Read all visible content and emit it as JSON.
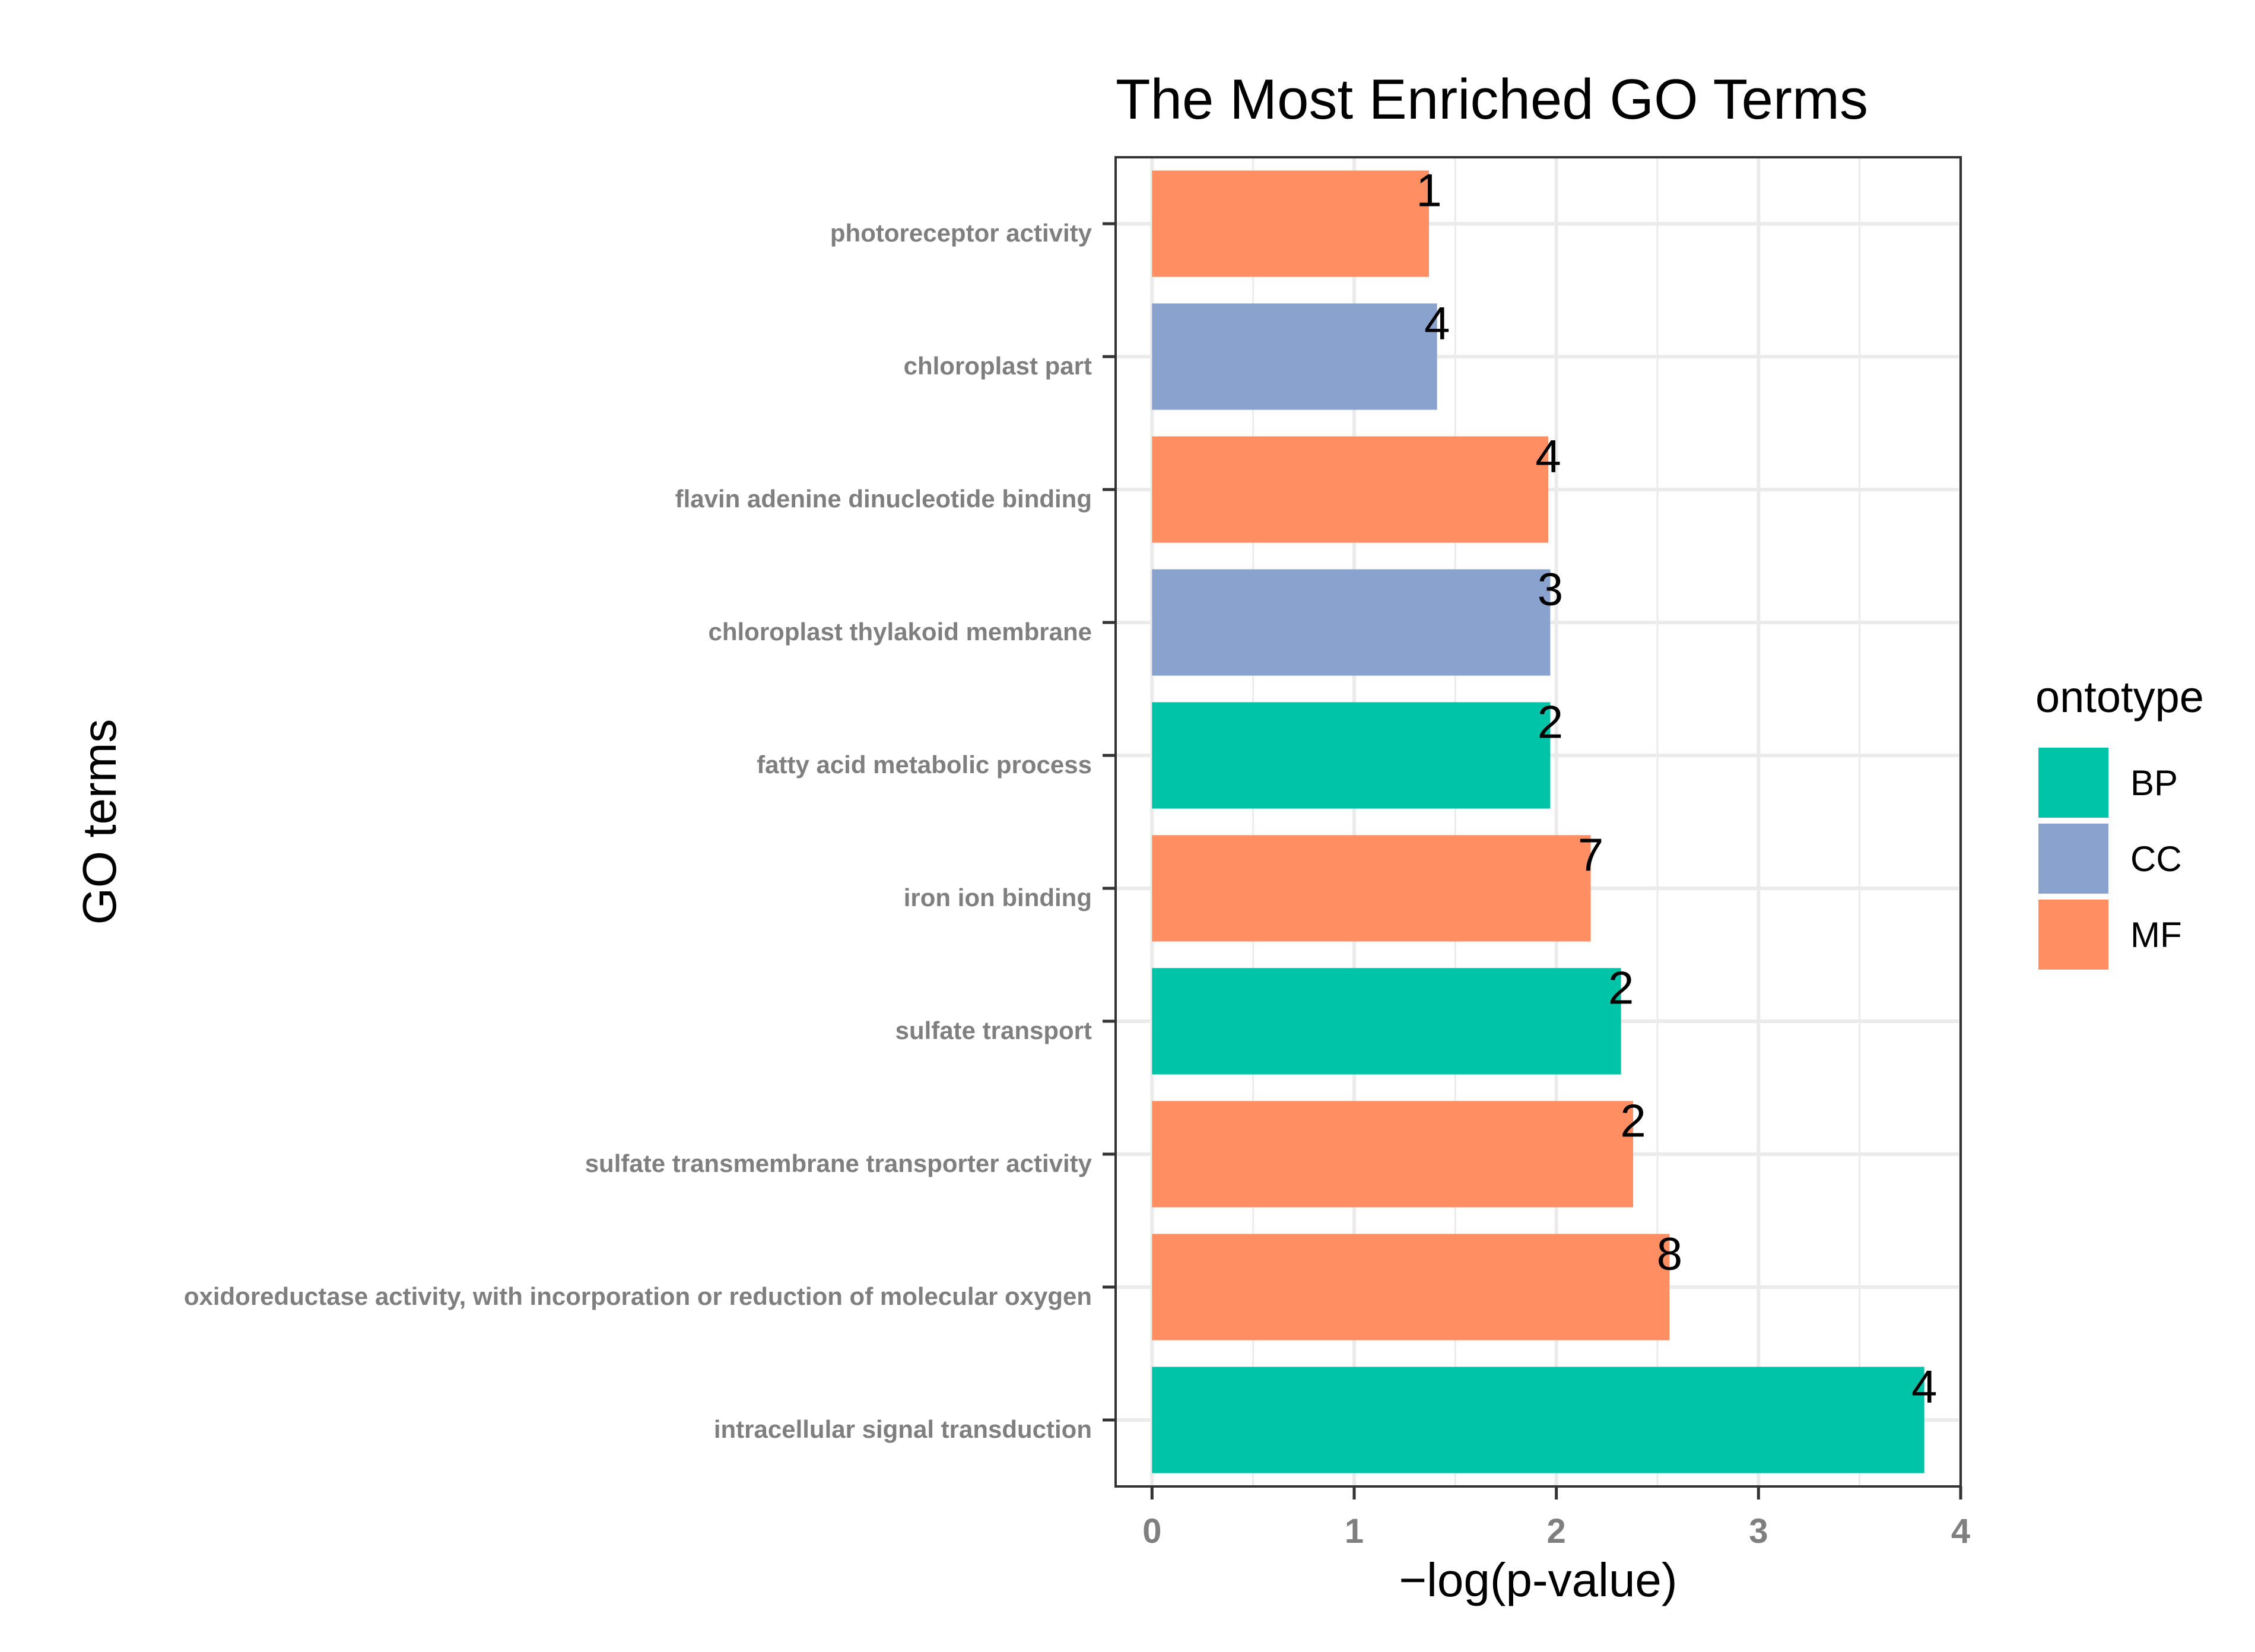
{
  "chart_data": {
    "type": "bar",
    "orientation": "horizontal",
    "title": "The Most Enriched GO Terms",
    "xlabel": "−log(p-value)",
    "ylabel": "GO terms",
    "xlim": [
      -0.18,
      4.0
    ],
    "xticks": [
      "0",
      "1",
      "2",
      "3",
      "4"
    ],
    "grid": true,
    "legend": {
      "title": "ontotype",
      "placement": "right",
      "entries": [
        {
          "name": "BP",
          "color": "#00C4A7"
        },
        {
          "name": "CC",
          "color": "#8AA2CE"
        },
        {
          "name": "MF",
          "color": "#FF8F63"
        }
      ]
    },
    "bars": [
      {
        "term": "photoreceptor activity",
        "value": 1.37,
        "count": "1",
        "ontotype": "MF"
      },
      {
        "term": "chloroplast part",
        "value": 1.41,
        "count": "4",
        "ontotype": "CC"
      },
      {
        "term": "flavin adenine dinucleotide binding",
        "value": 1.96,
        "count": "4",
        "ontotype": "MF"
      },
      {
        "term": "chloroplast thylakoid membrane",
        "value": 1.97,
        "count": "3",
        "ontotype": "CC"
      },
      {
        "term": "fatty acid metabolic process",
        "value": 1.97,
        "count": "2",
        "ontotype": "BP"
      },
      {
        "term": "iron ion binding",
        "value": 2.17,
        "count": "7",
        "ontotype": "MF"
      },
      {
        "term": "sulfate transport",
        "value": 2.32,
        "count": "2",
        "ontotype": "BP"
      },
      {
        "term": "sulfate transmembrane transporter activity",
        "value": 2.38,
        "count": "2",
        "ontotype": "MF"
      },
      {
        "term": "oxidoreductase activity, with incorporation or reduction of molecular oxygen",
        "value": 2.56,
        "count": "8",
        "ontotype": "MF"
      },
      {
        "term": "intracellular signal transduction",
        "value": 3.82,
        "count": "4",
        "ontotype": "BP"
      }
    ]
  }
}
